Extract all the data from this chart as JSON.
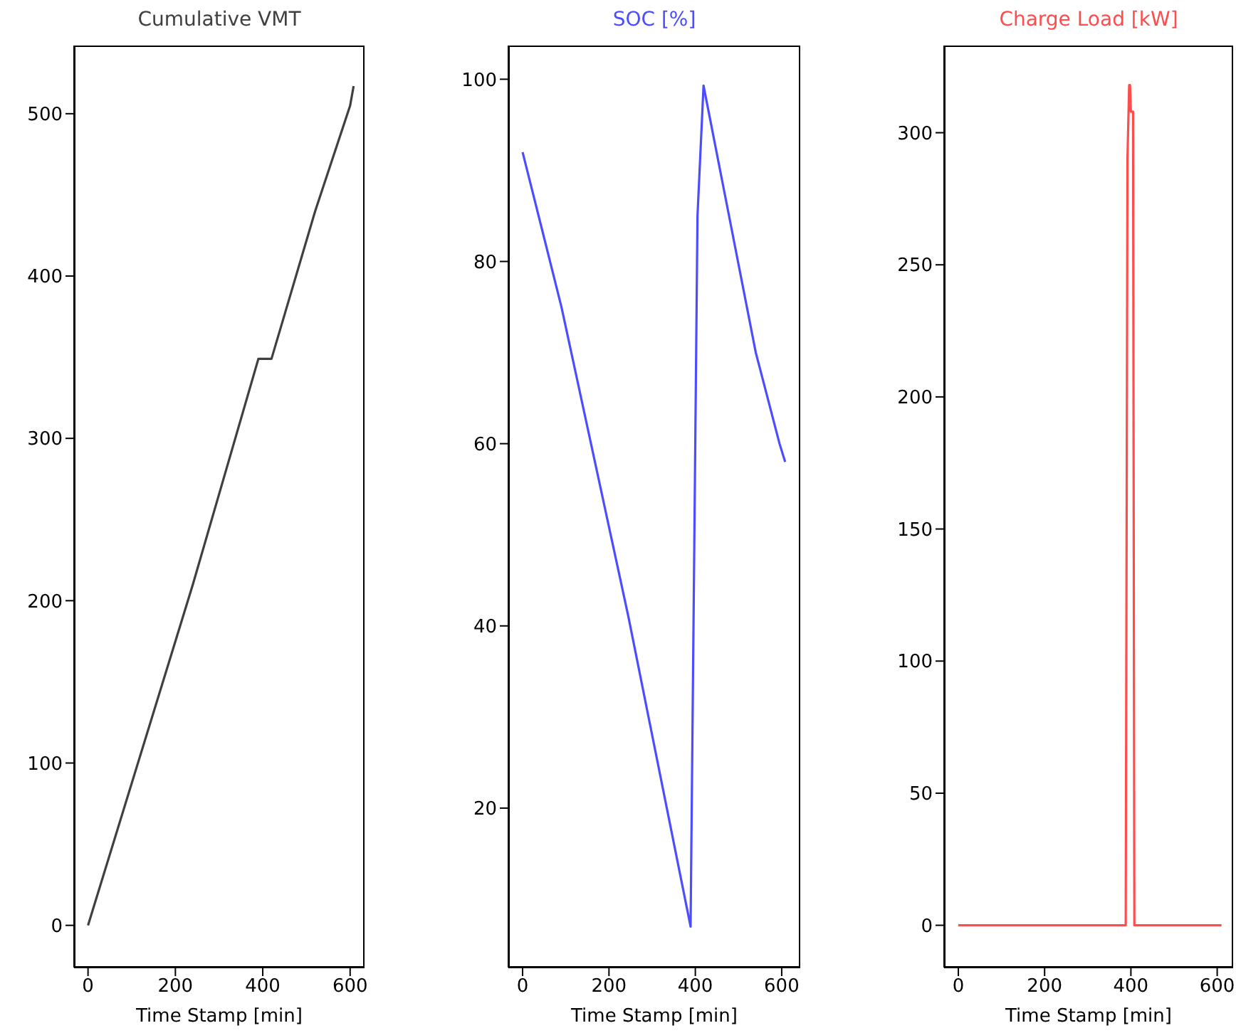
{
  "chart_data": [
    {
      "type": "line",
      "title": "Cumulative VMT",
      "xlabel": "Time Stamp [min]",
      "xlim": [
        -32,
        633
      ],
      "xticks": [
        0,
        200,
        400,
        600
      ],
      "ylim": [
        -26,
        542
      ],
      "yticks": [
        0,
        100,
        200,
        300,
        400,
        500
      ],
      "grid": false,
      "legend": false,
      "series": [
        {
          "color": "#404040",
          "x": [
            0,
            240,
            390,
            420,
            520,
            600,
            608
          ],
          "values": [
            0,
            210,
            349,
            349,
            440,
            505,
            517
          ]
        }
      ]
    },
    {
      "type": "line",
      "title": "SOC [%]",
      "xlabel": "Time Stamp [min]",
      "xlim": [
        -33,
        643
      ],
      "xticks": [
        0,
        200,
        400,
        600
      ],
      "ylim": [
        2.5,
        103.7
      ],
      "yticks": [
        20,
        40,
        60,
        80,
        100
      ],
      "grid": false,
      "legend": false,
      "series": [
        {
          "color": "#4d4dff",
          "x": [
            0,
            90,
            245,
            389,
            405,
            419,
            540,
            595,
            608
          ],
          "values": [
            92,
            75,
            41,
            7,
            85,
            99.3,
            70,
            60,
            58
          ]
        }
      ]
    },
    {
      "type": "line",
      "title": "Charge Load [kW]",
      "xlabel": "Time Stamp [min]",
      "xlim": [
        -33,
        637
      ],
      "xticks": [
        0,
        200,
        400,
        600
      ],
      "ylim": [
        -16,
        333
      ],
      "yticks": [
        0,
        50,
        100,
        150,
        200,
        250,
        300
      ],
      "grid": false,
      "legend": false,
      "series": [
        {
          "color": "#ff4d4d",
          "x": [
            0,
            388,
            392,
            396,
            398,
            400,
            405,
            408,
            610
          ],
          "values": [
            0,
            0,
            290,
            318,
            318,
            308,
            308,
            0,
            0
          ]
        }
      ]
    }
  ]
}
